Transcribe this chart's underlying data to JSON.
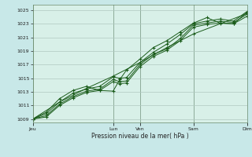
{
  "xlabel": "Pression niveau de la mer( hPa )",
  "bg_color": "#c8e8e8",
  "plot_bg_color": "#d8f0e8",
  "grid_color_major": "#b0c8c0",
  "grid_color_minor": "#c8ddd8",
  "line_color": "#1a5c1a",
  "ylim": [
    1008.5,
    1025.8
  ],
  "yticks": [
    1009,
    1011,
    1013,
    1015,
    1017,
    1019,
    1021,
    1023,
    1025
  ],
  "x_day_labels": [
    "Jeu",
    "Lun",
    "Ven",
    "Sam",
    "Dim"
  ],
  "x_day_positions": [
    0,
    3.0,
    4.0,
    6.0,
    8.0
  ],
  "xlim": [
    0,
    8.0
  ],
  "line1_x": [
    0,
    0.5,
    1,
    1.5,
    2,
    2.5,
    3,
    3.25,
    3.5,
    4,
    4.5,
    5,
    5.5,
    6,
    6.5,
    7,
    7.5,
    8
  ],
  "line1_y": [
    1009.0,
    1009.5,
    1011.2,
    1012.3,
    1013.1,
    1013.4,
    1014.8,
    1014.5,
    1014.6,
    1017.0,
    1018.5,
    1019.3,
    1020.8,
    1022.8,
    1023.1,
    1023.4,
    1023.2,
    1024.4
  ],
  "line2_x": [
    0,
    0.5,
    1,
    1.5,
    2,
    2.5,
    3,
    3.25,
    3.5,
    4,
    4.5,
    5,
    5.5,
    6,
    6.5,
    7,
    7.5,
    8
  ],
  "line2_y": [
    1009.0,
    1009.8,
    1011.5,
    1012.8,
    1013.4,
    1013.8,
    1015.2,
    1015.0,
    1015.1,
    1017.3,
    1018.8,
    1020.0,
    1021.4,
    1023.0,
    1023.4,
    1023.7,
    1023.4,
    1024.8
  ],
  "line3_x": [
    0,
    0.5,
    1,
    1.5,
    2,
    2.5,
    3,
    3.25,
    3.5,
    4,
    4.5,
    5,
    5.5,
    6,
    6.5,
    7,
    7.5,
    8
  ],
  "line3_y": [
    1009.0,
    1010.0,
    1012.0,
    1013.2,
    1013.8,
    1013.2,
    1013.1,
    1014.8,
    1016.2,
    1017.8,
    1019.5,
    1020.5,
    1021.8,
    1023.1,
    1023.9,
    1023.1,
    1023.0,
    1024.7
  ],
  "line4_x": [
    0,
    1,
    2,
    3,
    4,
    5,
    6,
    7,
    8
  ],
  "line4_y": [
    1009.0,
    1011.5,
    1013.5,
    1015.3,
    1017.3,
    1019.5,
    1021.5,
    1023.0,
    1024.5
  ],
  "line5_x": [
    0,
    0.5,
    1,
    1.5,
    2,
    2.5,
    3,
    3.25,
    3.5,
    4,
    4.5,
    5,
    5.5,
    6,
    6.5,
    7,
    7.5,
    8
  ],
  "line5_y": [
    1009.0,
    1009.3,
    1011.0,
    1012.1,
    1012.9,
    1013.2,
    1014.5,
    1014.2,
    1014.3,
    1016.7,
    1018.2,
    1019.1,
    1020.5,
    1022.5,
    1022.9,
    1023.1,
    1023.0,
    1024.1
  ]
}
